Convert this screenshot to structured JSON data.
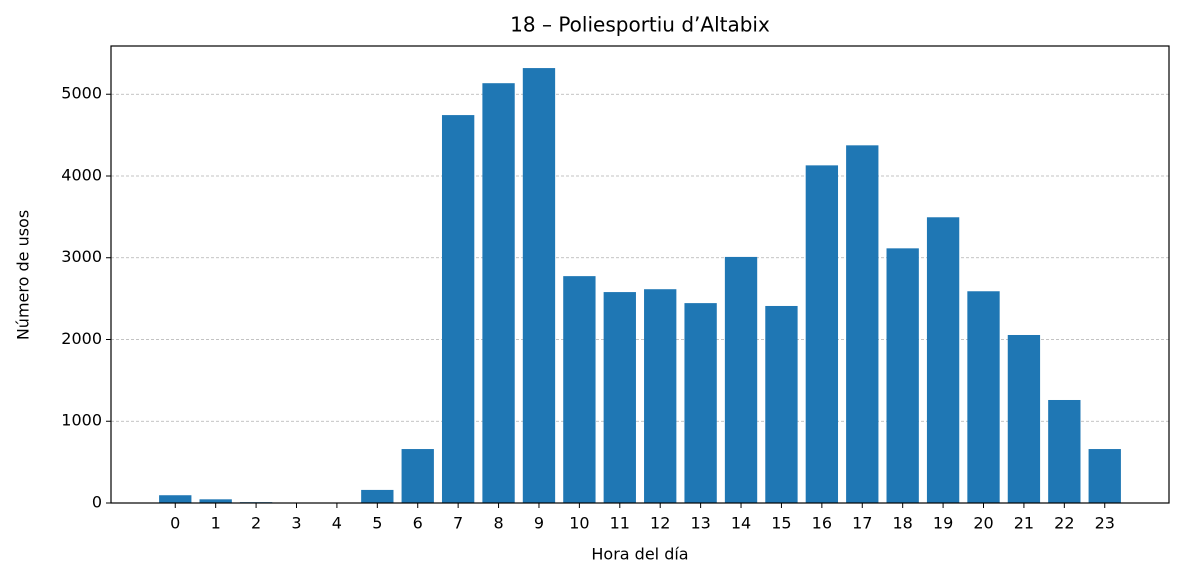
{
  "chart_data": {
    "type": "bar",
    "title": "18 – Poliesportiu d’Altabix",
    "x_label": "Hora del día",
    "y_label": "Número de usos",
    "categories": [
      "0",
      "1",
      "2",
      "3",
      "4",
      "5",
      "6",
      "7",
      "8",
      "9",
      "10",
      "11",
      "12",
      "13",
      "14",
      "15",
      "16",
      "17",
      "18",
      "19",
      "20",
      "21",
      "22",
      "23"
    ],
    "values": [
      95,
      45,
      10,
      5,
      3,
      160,
      660,
      4745,
      5135,
      5320,
      2775,
      2580,
      2615,
      2445,
      3010,
      2410,
      4130,
      4375,
      3115,
      3495,
      2590,
      2055,
      1260,
      660
    ],
    "color": "#1f77b4",
    "ylim": [
      0,
      5590
    ],
    "yticks": [
      0,
      1000,
      2000,
      3000,
      4000,
      5000
    ],
    "grid": true
  }
}
